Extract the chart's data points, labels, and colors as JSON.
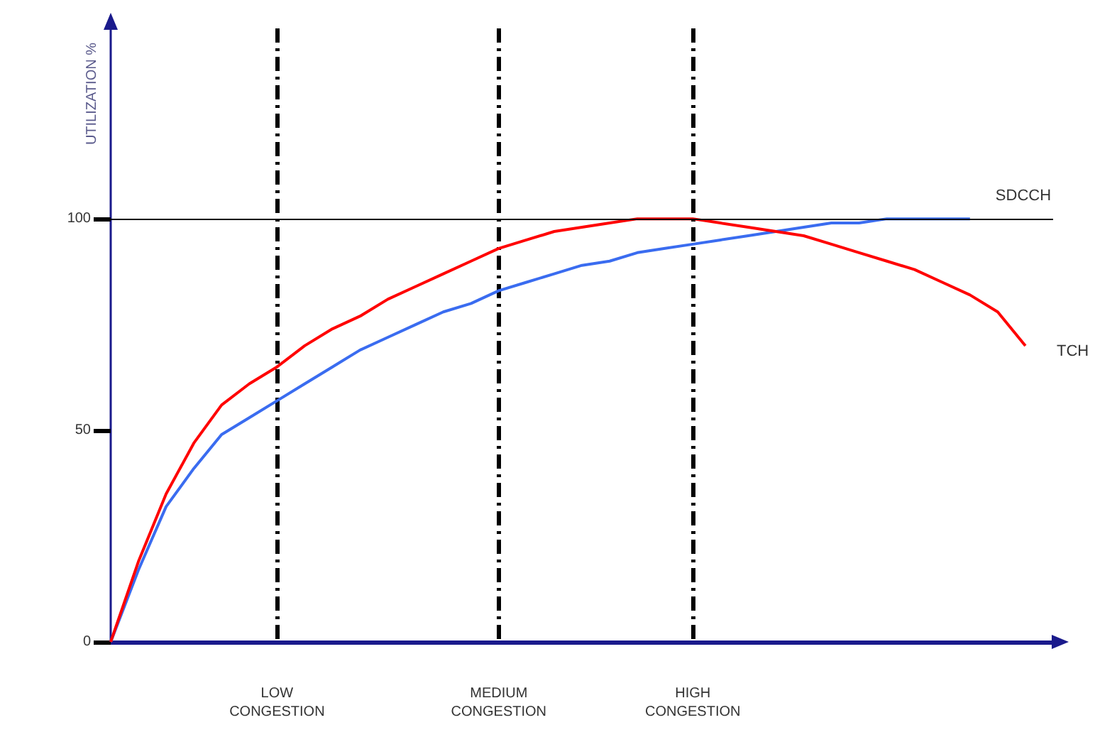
{
  "chart_data": {
    "type": "line",
    "ylabel": "UTILIZATION %",
    "categories": [
      null,
      null,
      null,
      null,
      null,
      null,
      "LOW\nCONGESTION",
      null,
      null,
      null,
      null,
      null,
      null,
      null,
      "MEDIUM\nCONGESTION",
      null,
      null,
      null,
      null,
      null,
      null,
      "HIGH\nCONGESTION",
      null,
      null,
      null,
      null,
      null,
      null,
      null,
      null,
      null,
      null,
      null,
      null,
      null
    ],
    "series": [
      {
        "name": "SDCCH",
        "color": "#3a6cf0",
        "values": [
          0,
          17,
          32,
          41,
          49,
          53,
          57,
          61,
          65,
          69,
          72,
          75,
          78,
          80,
          83,
          85,
          87,
          89,
          90,
          92,
          93,
          94,
          95,
          96,
          97,
          98,
          99,
          99,
          100,
          100,
          100,
          100,
          null,
          null,
          null
        ]
      },
      {
        "name": "TCH",
        "color": "#ff0000",
        "values": [
          0,
          19,
          35,
          47,
          56,
          61,
          65,
          70,
          74,
          77,
          81,
          84,
          87,
          90,
          93,
          95,
          97,
          98,
          99,
          100,
          100,
          100,
          99,
          98,
          97,
          96,
          94,
          92,
          90,
          88,
          85,
          82,
          78,
          70,
          null
        ]
      }
    ],
    "ylim": [
      0,
      145
    ],
    "yticks": [
      0,
      50,
      100
    ],
    "ref_lines": [
      {
        "axis": "y",
        "value": 100,
        "color": "#000000"
      }
    ],
    "grid": "x",
    "line_style": "solid",
    "marker": "none"
  }
}
